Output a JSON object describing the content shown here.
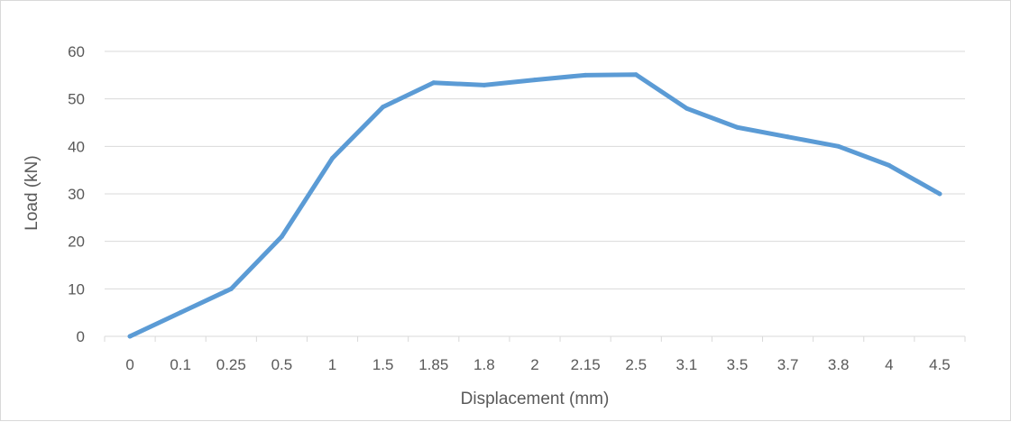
{
  "chart_data": {
    "type": "line",
    "title": "",
    "xlabel": "Displacement (mm)",
    "ylabel": "Load (kN)",
    "categories": [
      "0",
      "0.1",
      "0.25",
      "0.5",
      "1",
      "1.5",
      "1.85",
      "1.8",
      "2",
      "2.15",
      "2.5",
      "3.1",
      "3.5",
      "3.7",
      "3.8",
      "4",
      "4.5"
    ],
    "series": [
      {
        "values": [
          0,
          5,
          10,
          21,
          37.5,
          48.3,
          53.4,
          52.9,
          54,
          55,
          55.1,
          48,
          44,
          42,
          40,
          36,
          30
        ],
        "color": "#5b9bd5"
      }
    ],
    "ylim": [
      0,
      60
    ],
    "yticks": [
      0,
      10,
      20,
      30,
      40,
      50,
      60
    ],
    "grid": true,
    "legend": "none"
  }
}
